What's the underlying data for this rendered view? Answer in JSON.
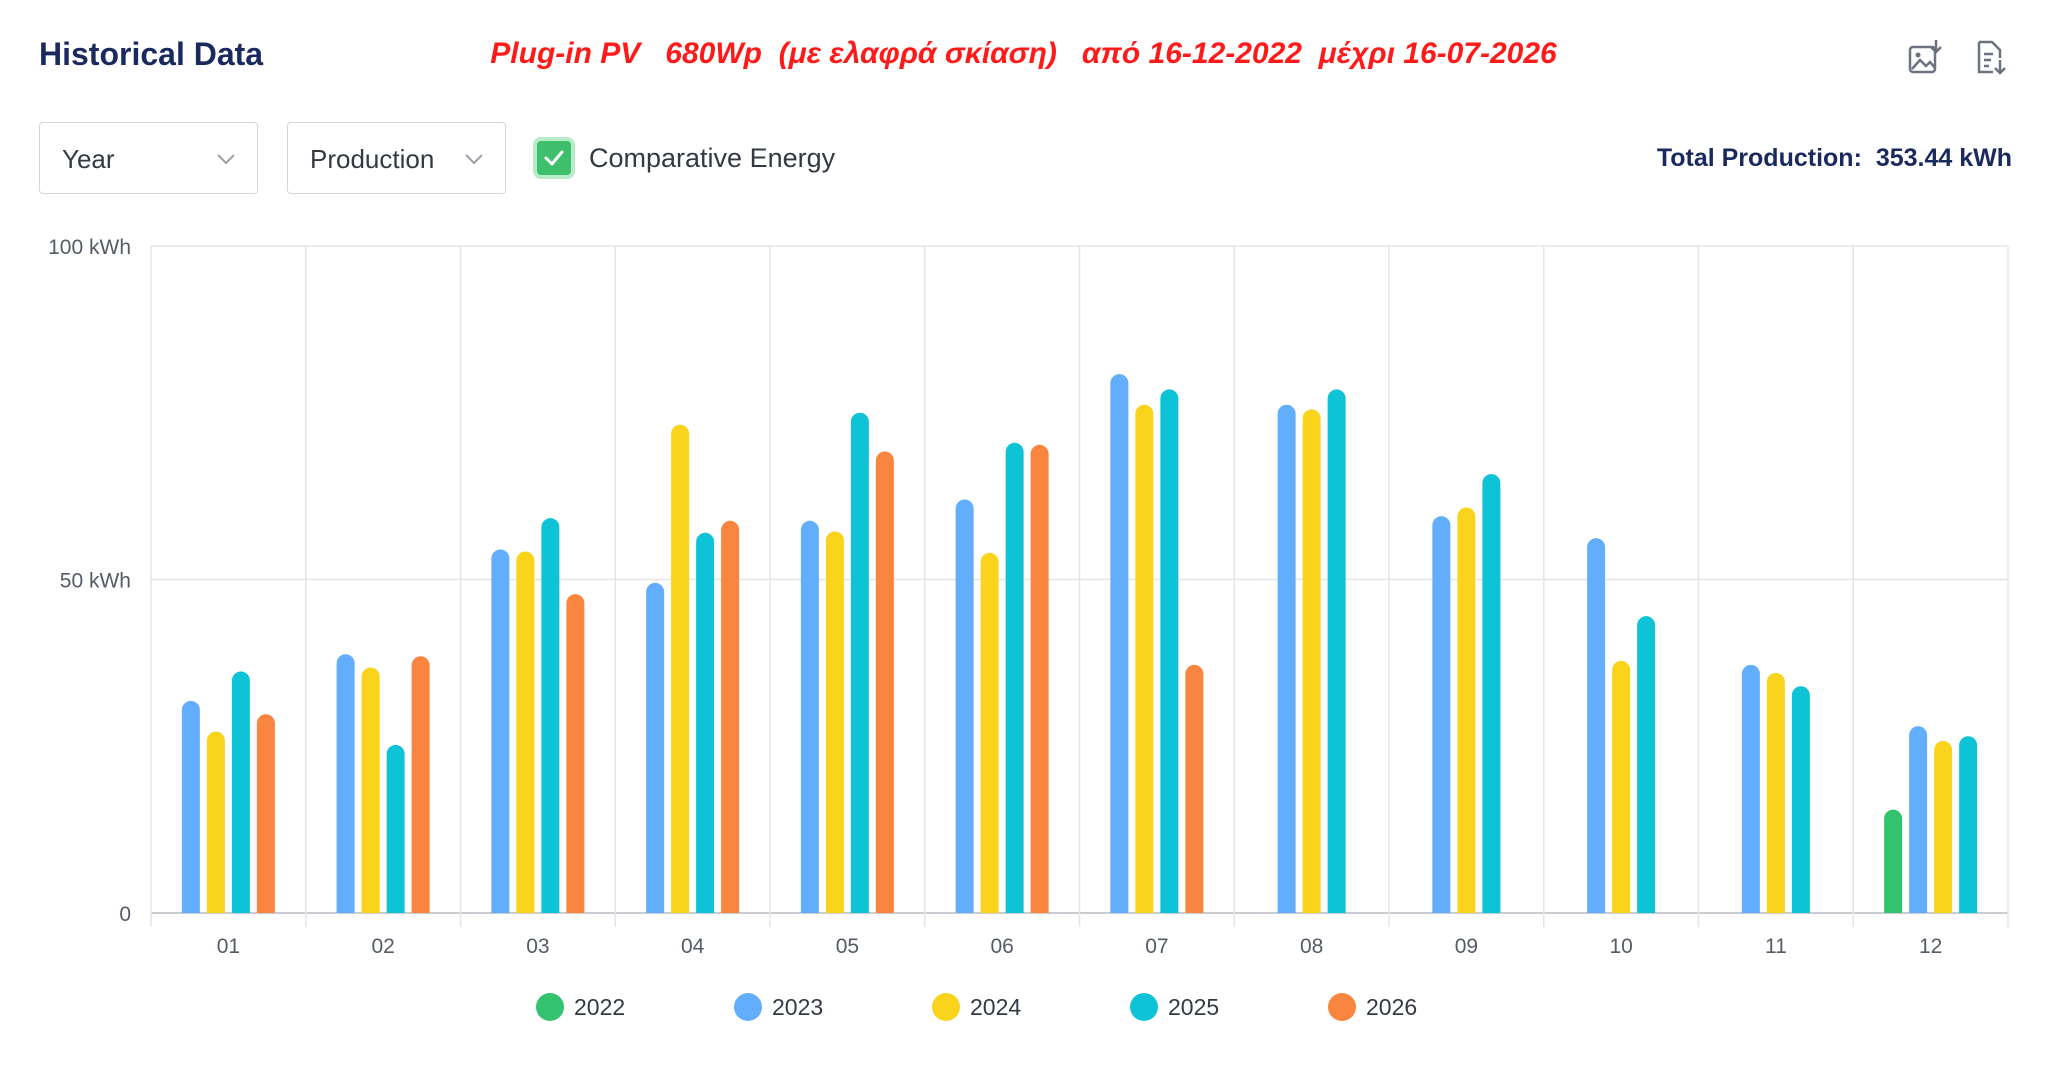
{
  "header": {
    "title": "Historical Data",
    "subtitle": "Plug-in PV   680Wp  (με ελαφρά σκίαση)   από 16-12-2022  μέχρι 16-07-2026",
    "export_image_icon": "image-download-icon",
    "export_report_icon": "document-download-icon"
  },
  "controls": {
    "period_select": {
      "value": "Year",
      "icon": "chevron-down-icon"
    },
    "metric_select": {
      "value": "Production",
      "icon": "chevron-down-icon"
    },
    "comparative": {
      "label": "Comparative Energy",
      "checked": true,
      "icon": "check-icon"
    },
    "total_label": "Total Production:",
    "total_value": "353.44 kWh"
  },
  "colors": {
    "2022": "#33c26e",
    "2023": "#62aefc",
    "2024": "#fad31c",
    "2025": "#0ec3d6",
    "2026": "#fa8540",
    "title": "#1b2a5e",
    "subtitle": "#ff1a1a",
    "checkbox": "#3dbf6c"
  },
  "chart_data": {
    "type": "bar",
    "categories": [
      "01",
      "02",
      "03",
      "04",
      "05",
      "06",
      "07",
      "08",
      "09",
      "10",
      "11",
      "12"
    ],
    "y_unit": "kWh",
    "y_ticks": [
      "0",
      "50 kWh",
      "100 kWh"
    ],
    "ylim": [
      0,
      100
    ],
    "grid": true,
    "legend_position": "bottom",
    "series": [
      {
        "name": "2022",
        "values": [
          null,
          null,
          null,
          null,
          null,
          null,
          null,
          null,
          null,
          null,
          null,
          15.5
        ]
      },
      {
        "name": "2023",
        "values": [
          31.8,
          38.8,
          54.5,
          49.5,
          58.8,
          62.0,
          80.8,
          76.2,
          59.5,
          56.2,
          37.2,
          28.0
        ]
      },
      {
        "name": "2024",
        "values": [
          27.2,
          36.8,
          54.2,
          73.2,
          57.2,
          54.0,
          76.2,
          75.5,
          60.8,
          37.8,
          36.0,
          25.8
        ]
      },
      {
        "name": "2025",
        "values": [
          36.2,
          25.2,
          59.2,
          57.0,
          75.0,
          70.5,
          78.5,
          78.5,
          65.8,
          44.5,
          34.0,
          26.5
        ]
      },
      {
        "name": "2026",
        "values": [
          29.8,
          38.5,
          47.8,
          58.8,
          69.2,
          70.2,
          37.2,
          null,
          null,
          null,
          null,
          null
        ]
      }
    ]
  }
}
